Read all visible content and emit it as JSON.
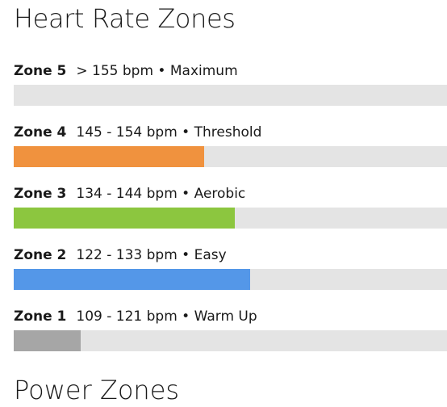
{
  "page_title": "Heart Rate Zones",
  "zones": [
    {
      "name": "Zone 5",
      "detail": "> 155 bpm • Maximum",
      "fraction": 0.0,
      "color": "#f0923e"
    },
    {
      "name": "Zone 4",
      "detail": "145 - 154 bpm • Threshold",
      "fraction": 0.44,
      "color": "#f0923e"
    },
    {
      "name": "Zone 3",
      "detail": "134 - 144 bpm • Aerobic",
      "fraction": 0.51,
      "color": "#8cc63f"
    },
    {
      "name": "Zone 2",
      "detail": "122 - 133 bpm • Easy",
      "fraction": 0.545,
      "color": "#5497e8"
    },
    {
      "name": "Zone 1",
      "detail": "109 - 121 bpm • Warm Up",
      "fraction": 0.155,
      "color": "#a6a6a6"
    }
  ],
  "next_section_title": "Power Zones"
}
